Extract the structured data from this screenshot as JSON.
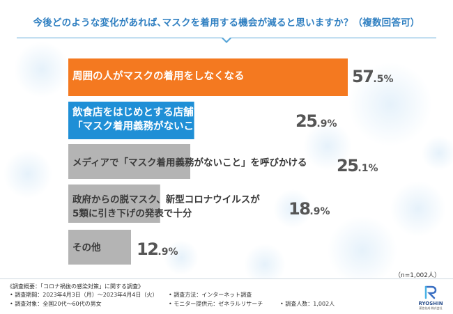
{
  "title": "今後どのような変化があれば､マスクを着用する機会が減ると思いますか？（複数回答可）",
  "colors": {
    "title": "#2f7fc1",
    "highlight_1": "#f47920",
    "highlight_2": "#1f8fd6",
    "others": "#b4b4b4",
    "value_text": "#555555"
  },
  "chart_data": {
    "type": "bar",
    "orientation": "horizontal",
    "categories": [
      "周囲の人がマスクの着用をしなくなる",
      "飲食店をはじめとする店舗で\n「マスク着用義務がないこと」を貼り出す",
      "メディアで「マスク着用義務がないこと」を呼びかける",
      "政府からの脱マスク、新型コロナウイルスが\n5類に引き下げの発表で十分",
      "その他"
    ],
    "values": [
      57.5,
      25.9,
      25.1,
      18.9,
      12.9
    ],
    "value_labels": [
      {
        "int": "57",
        "dec": ".5%"
      },
      {
        "int": "25",
        "dec": ".9%"
      },
      {
        "int": "25",
        "dec": ".1%"
      },
      {
        "int": "18",
        "dec": ".9%"
      },
      {
        "int": "12",
        "dec": ".9%"
      }
    ],
    "bar_colors": [
      "#f47920",
      "#1f8fd6",
      "#b4b4b4",
      "#b4b4b4",
      "#b4b4b4"
    ],
    "xlim": [
      0,
      57.5
    ],
    "grid": false,
    "legend": "none"
  },
  "sample_size": "（n=1,002人）",
  "footer": {
    "overview": "《調査概要：「コロナ禍後の感染対策」に関する調査》",
    "period": "• 調査期間：2023年4月3日（月）～2023年4月4日（火）",
    "method": "• 調査方法：インターネット調査",
    "target": "• 調査対象：全国20代～60代の男女",
    "provider": "• モニター提供元：ゼネラルリサーチ",
    "count": "• 調査人数：1,002人"
  },
  "logo": {
    "name": "RYOSHIN",
    "sub": "菱信化成 株式会社",
    "icon": "ryoshin-logo-icon"
  }
}
